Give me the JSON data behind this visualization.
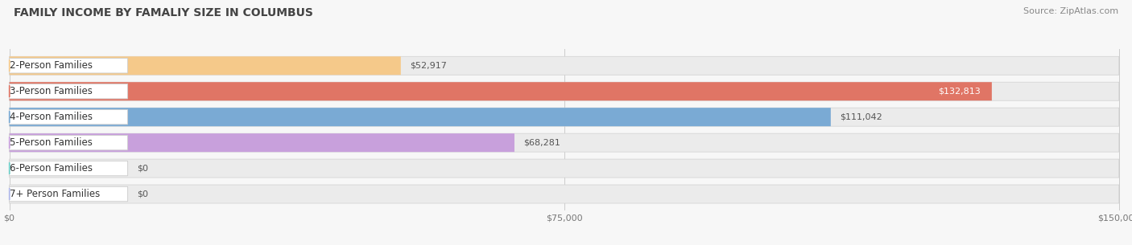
{
  "title": "FAMILY INCOME BY FAMALIY SIZE IN COLUMBUS",
  "source": "Source: ZipAtlas.com",
  "categories": [
    "2-Person Families",
    "3-Person Families",
    "4-Person Families",
    "5-Person Families",
    "6-Person Families",
    "7+ Person Families"
  ],
  "values": [
    52917,
    132813,
    111042,
    68281,
    0,
    0
  ],
  "bar_colors": [
    "#f5c98a",
    "#e07565",
    "#7aaad4",
    "#c8a0dc",
    "#6ecfc8",
    "#b0b8ea"
  ],
  "value_labels": [
    "$52,917",
    "$132,813",
    "$111,042",
    "$68,281",
    "$0",
    "$0"
  ],
  "xmax": 150000,
  "xticks": [
    0,
    75000,
    150000
  ],
  "xtick_labels": [
    "$0",
    "$75,000",
    "$150,000"
  ],
  "background_color": "#f7f7f7",
  "bar_bg_color": "#ebebeb",
  "title_fontsize": 10,
  "source_fontsize": 8,
  "label_fontsize": 8.5,
  "value_fontsize": 8.0
}
